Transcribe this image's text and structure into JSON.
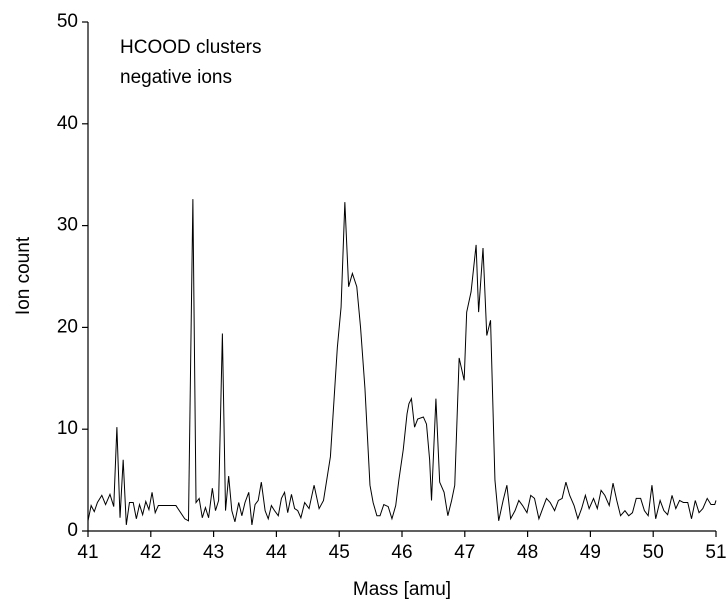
{
  "chart_data": {
    "type": "line",
    "annotations": [
      "HCOOD clusters",
      "negative ions"
    ],
    "x_label": "Mass [amu]",
    "y_label": "Ion count",
    "xlim": [
      41,
      51
    ],
    "xticks": [
      41,
      42,
      43,
      44,
      45,
      46,
      47,
      48,
      49,
      50,
      51
    ],
    "ylim": [
      0,
      50
    ],
    "yticks": [
      0,
      10,
      20,
      30,
      40,
      50
    ],
    "grid": false,
    "series": [
      {
        "color": "#000000",
        "x": [
          41.0,
          41.05,
          41.1,
          41.15,
          41.22,
          41.28,
          41.35,
          41.41,
          41.46,
          41.51,
          41.56,
          41.61,
          41.66,
          41.72,
          41.77,
          41.82,
          41.87,
          41.92,
          41.97,
          42.02,
          42.07,
          42.12,
          42.2,
          42.3,
          42.4,
          42.54,
          42.6,
          42.67,
          42.72,
          42.77,
          42.82,
          42.87,
          42.92,
          42.98,
          43.03,
          43.08,
          43.14,
          43.19,
          43.24,
          43.29,
          43.34,
          43.4,
          43.45,
          43.5,
          43.56,
          43.61,
          43.66,
          43.71,
          43.76,
          43.82,
          43.87,
          43.92,
          43.97,
          44.03,
          44.08,
          44.13,
          44.18,
          44.24,
          44.29,
          44.34,
          44.39,
          44.45,
          44.52,
          44.6,
          44.68,
          44.75,
          44.86,
          44.97,
          45.03,
          45.09,
          45.15,
          45.21,
          45.28,
          45.34,
          45.41,
          45.49,
          45.54,
          45.6,
          45.65,
          45.71,
          45.78,
          45.84,
          45.9,
          45.95,
          46.02,
          46.08,
          46.11,
          46.15,
          46.2,
          46.25,
          46.34,
          46.39,
          46.44,
          46.47,
          46.54,
          46.6,
          46.67,
          46.73,
          46.79,
          46.84,
          46.91,
          46.99,
          47.03,
          47.1,
          47.18,
          47.22,
          47.29,
          47.35,
          47.41,
          47.48,
          47.54,
          47.61,
          47.67,
          47.73,
          47.8,
          47.86,
          47.92,
          47.99,
          48.05,
          48.11,
          48.18,
          48.24,
          48.3,
          48.36,
          48.43,
          48.49,
          48.55,
          48.61,
          48.67,
          48.74,
          48.8,
          48.86,
          48.92,
          48.98,
          49.05,
          49.11,
          49.17,
          49.23,
          49.3,
          49.36,
          49.42,
          49.48,
          49.55,
          49.61,
          49.67,
          49.73,
          49.8,
          49.86,
          49.92,
          49.98,
          50.04,
          50.11,
          50.17,
          50.23,
          50.3,
          50.36,
          50.42,
          50.48,
          50.55,
          50.61,
          50.67,
          50.73,
          50.79,
          50.86,
          50.92,
          50.98,
          51.0
        ],
        "values": [
          1.0,
          2.5,
          1.9,
          2.8,
          3.5,
          2.6,
          3.6,
          2.4,
          10.2,
          1.3,
          7.0,
          0.6,
          2.8,
          2.8,
          1.2,
          2.6,
          1.6,
          2.9,
          2.1,
          3.8,
          1.8,
          2.5,
          2.5,
          2.5,
          2.5,
          1.2,
          1.0,
          32.6,
          2.8,
          3.2,
          1.3,
          2.3,
          1.3,
          4.2,
          2.0,
          3.0,
          19.4,
          2.0,
          5.4,
          2.0,
          0.9,
          2.8,
          1.5,
          2.8,
          3.8,
          0.6,
          2.6,
          3.0,
          4.8,
          2.0,
          1.2,
          2.5,
          2.0,
          1.5,
          3.2,
          3.8,
          1.8,
          3.6,
          2.2,
          2.0,
          1.3,
          2.8,
          2.2,
          4.5,
          2.2,
          3.0,
          7.3,
          18.0,
          22.0,
          32.3,
          24.0,
          25.3,
          24.0,
          20.0,
          14.0,
          4.5,
          2.8,
          1.5,
          1.5,
          2.6,
          2.4,
          1.2,
          2.5,
          5.0,
          8.0,
          11.5,
          12.5,
          13.0,
          10.2,
          11.0,
          11.2,
          10.5,
          7.0,
          3.0,
          13.0,
          4.8,
          3.8,
          1.5,
          3.0,
          4.5,
          17.0,
          14.8,
          21.5,
          23.5,
          28.1,
          21.5,
          27.8,
          19.2,
          20.7,
          5.0,
          1.0,
          3.0,
          4.5,
          1.2,
          2.0,
          3.0,
          2.5,
          1.8,
          3.5,
          3.2,
          1.2,
          2.2,
          3.2,
          2.8,
          2.0,
          3.0,
          3.2,
          4.8,
          3.5,
          2.5,
          1.2,
          2.2,
          3.5,
          2.2,
          3.2,
          2.2,
          4.0,
          3.5,
          2.5,
          4.7,
          3.0,
          1.5,
          2.0,
          1.5,
          1.8,
          3.2,
          3.2,
          2.0,
          1.5,
          4.5,
          1.2,
          3.0,
          2.0,
          1.6,
          3.5,
          2.2,
          3.0,
          2.8,
          2.8,
          1.2,
          3.0,
          1.8,
          2.2,
          3.2,
          2.6,
          2.6,
          3.0
        ]
      }
    ]
  }
}
